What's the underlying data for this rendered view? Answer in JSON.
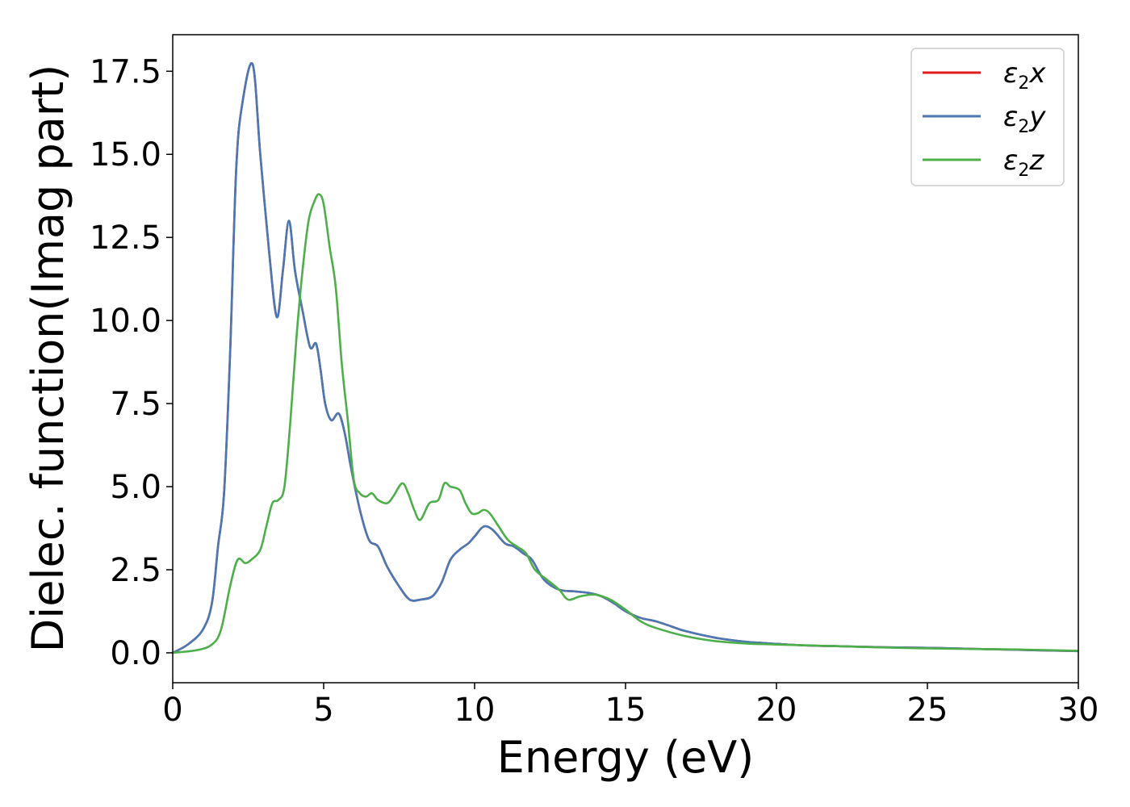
{
  "chart_data": {
    "type": "line",
    "title": "",
    "xlabel": "Energy (eV)",
    "ylabel": "Dielec. function(Imag part)",
    "xlim": [
      0,
      30
    ],
    "ylim": [
      -0.9,
      18.6
    ],
    "xticks": [
      0,
      5,
      10,
      15,
      20,
      25,
      30
    ],
    "yticks": [
      0.0,
      2.5,
      5.0,
      7.5,
      10.0,
      12.5,
      15.0,
      17.5
    ],
    "xtick_labels": [
      "0",
      "5",
      "10",
      "15",
      "20",
      "25",
      "30"
    ],
    "ytick_labels": [
      "0.0",
      "2.5",
      "5.0",
      "7.5",
      "10.0",
      "12.5",
      "15.0",
      "17.5"
    ],
    "grid": false,
    "legend": "top-right",
    "series": [
      {
        "name": "ε2x",
        "label_base": "ε",
        "label_sub": "2",
        "label_tail": "x",
        "color": "#e41a1c",
        "x": [
          0,
          0.5,
          1.0,
          1.3,
          1.5,
          1.7,
          1.9,
          2.1,
          2.3,
          2.65,
          2.9,
          3.2,
          3.45,
          3.65,
          3.85,
          4.05,
          4.3,
          4.55,
          4.75,
          4.9,
          5.05,
          5.25,
          5.5,
          5.7,
          5.9,
          6.2,
          6.5,
          6.8,
          7.1,
          7.5,
          7.85,
          8.2,
          8.6,
          8.9,
          9.2,
          9.5,
          9.8,
          10.0,
          10.3,
          10.6,
          11.0,
          11.3,
          11.6,
          11.9,
          12.3,
          12.8,
          13.3,
          13.8,
          14.2,
          14.6,
          15.0,
          15.5,
          16.0,
          16.5,
          17.0,
          18.0,
          19.0,
          20.0,
          21.0,
          22.0,
          23.0,
          24.0,
          25.0,
          26.0,
          27.0,
          28.0,
          29.0,
          30.0
        ],
        "y": [
          0,
          0.25,
          0.7,
          1.5,
          3.2,
          4.8,
          9.0,
          14.5,
          16.5,
          17.7,
          15.0,
          12.0,
          10.1,
          11.5,
          13.0,
          11.5,
          10.3,
          9.2,
          9.3,
          8.5,
          7.5,
          7.0,
          7.2,
          6.6,
          5.6,
          4.3,
          3.4,
          3.2,
          2.6,
          2.0,
          1.6,
          1.6,
          1.7,
          2.1,
          2.8,
          3.1,
          3.3,
          3.5,
          3.8,
          3.7,
          3.3,
          3.2,
          3.0,
          2.8,
          2.2,
          1.9,
          1.85,
          1.8,
          1.7,
          1.5,
          1.25,
          1.05,
          0.95,
          0.8,
          0.65,
          0.45,
          0.33,
          0.27,
          0.22,
          0.2,
          0.18,
          0.16,
          0.15,
          0.13,
          0.11,
          0.09,
          0.07,
          0.05
        ]
      },
      {
        "name": "ε2y",
        "label_base": "ε",
        "label_sub": "2",
        "label_tail": "y",
        "color": "#4a78b4",
        "x": [
          0,
          0.5,
          1.0,
          1.3,
          1.5,
          1.7,
          1.9,
          2.1,
          2.3,
          2.65,
          2.9,
          3.2,
          3.45,
          3.65,
          3.85,
          4.05,
          4.3,
          4.55,
          4.75,
          4.9,
          5.05,
          5.25,
          5.5,
          5.7,
          5.9,
          6.2,
          6.5,
          6.8,
          7.1,
          7.5,
          7.85,
          8.2,
          8.6,
          8.9,
          9.2,
          9.5,
          9.8,
          10.0,
          10.3,
          10.6,
          11.0,
          11.3,
          11.6,
          11.9,
          12.3,
          12.8,
          13.3,
          13.8,
          14.2,
          14.6,
          15.0,
          15.5,
          16.0,
          16.5,
          17.0,
          18.0,
          19.0,
          20.0,
          21.0,
          22.0,
          23.0,
          24.0,
          25.0,
          26.0,
          27.0,
          28.0,
          29.0,
          30.0
        ],
        "y": [
          0,
          0.25,
          0.7,
          1.5,
          3.2,
          4.8,
          9.0,
          14.5,
          16.5,
          17.7,
          15.0,
          12.0,
          10.1,
          11.5,
          13.0,
          11.5,
          10.3,
          9.2,
          9.3,
          8.5,
          7.5,
          7.0,
          7.2,
          6.6,
          5.6,
          4.3,
          3.4,
          3.2,
          2.6,
          2.0,
          1.6,
          1.6,
          1.7,
          2.1,
          2.8,
          3.1,
          3.3,
          3.5,
          3.8,
          3.7,
          3.3,
          3.2,
          3.0,
          2.8,
          2.2,
          1.9,
          1.85,
          1.8,
          1.7,
          1.5,
          1.25,
          1.05,
          0.95,
          0.8,
          0.65,
          0.45,
          0.33,
          0.27,
          0.22,
          0.2,
          0.18,
          0.16,
          0.15,
          0.13,
          0.11,
          0.09,
          0.07,
          0.05
        ]
      },
      {
        "name": "ε2z",
        "label_base": "ε",
        "label_sub": "2",
        "label_tail": "z",
        "color": "#4daf4a",
        "x": [
          0,
          0.8,
          1.3,
          1.6,
          1.9,
          2.15,
          2.4,
          2.6,
          2.9,
          3.1,
          3.3,
          3.5,
          3.7,
          3.9,
          4.1,
          4.3,
          4.5,
          4.7,
          4.85,
          5.0,
          5.2,
          5.4,
          5.6,
          5.8,
          6.0,
          6.2,
          6.4,
          6.6,
          6.8,
          7.1,
          7.3,
          7.6,
          7.8,
          8.0,
          8.2,
          8.5,
          8.8,
          9.0,
          9.2,
          9.5,
          9.7,
          9.9,
          10.1,
          10.3,
          10.5,
          10.8,
          11.1,
          11.4,
          11.7,
          12.0,
          12.4,
          12.8,
          13.1,
          13.5,
          14.0,
          14.5,
          15.0,
          15.5,
          16.0,
          17.0,
          18.0,
          19.0,
          20.0,
          22.0,
          24.0,
          26.0,
          28.0,
          30.0
        ],
        "y": [
          0,
          0.08,
          0.25,
          0.7,
          2.0,
          2.8,
          2.7,
          2.8,
          3.1,
          3.8,
          4.5,
          4.6,
          5.0,
          7.0,
          9.5,
          11.5,
          13.0,
          13.6,
          13.8,
          13.5,
          12.2,
          11.0,
          8.7,
          7.0,
          5.2,
          4.8,
          4.7,
          4.8,
          4.6,
          4.5,
          4.7,
          5.1,
          4.8,
          4.3,
          4.0,
          4.5,
          4.6,
          5.1,
          5.0,
          4.9,
          4.5,
          4.2,
          4.2,
          4.3,
          4.2,
          3.8,
          3.4,
          3.2,
          3.0,
          2.5,
          2.2,
          1.9,
          1.6,
          1.7,
          1.75,
          1.6,
          1.3,
          0.95,
          0.75,
          0.5,
          0.35,
          0.28,
          0.25,
          0.2,
          0.15,
          0.12,
          0.1,
          0.06
        ]
      }
    ]
  }
}
